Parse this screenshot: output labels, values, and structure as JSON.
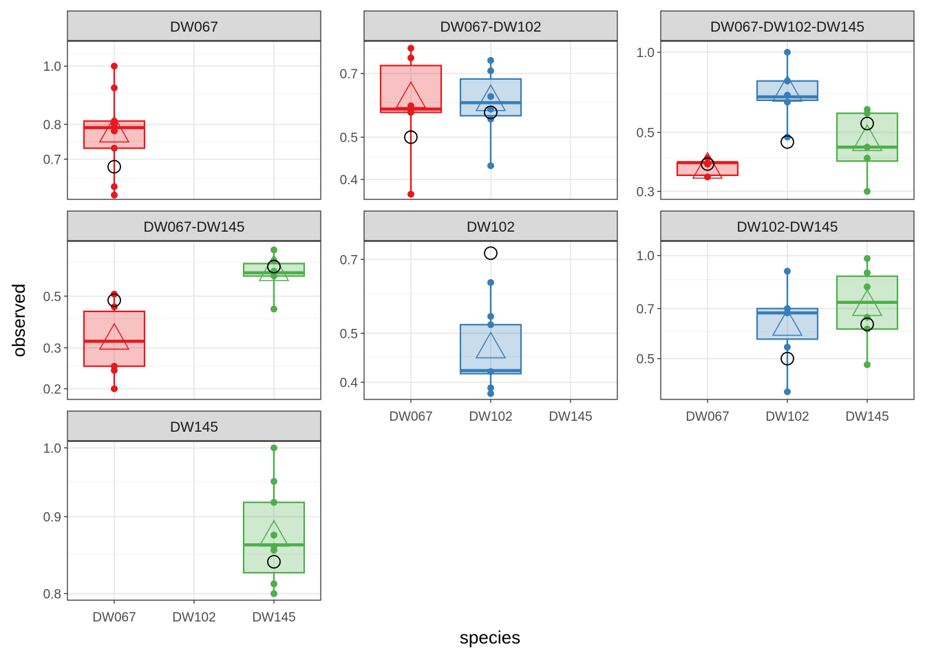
{
  "chart_data": {
    "type": "box",
    "xlabel": "species",
    "ylabel": "observed",
    "categories": [
      "DW067",
      "DW102",
      "DW145"
    ],
    "colors": {
      "DW067": "#e41a1c",
      "DW102": "#377eb8",
      "DW145": "#4daf4a"
    },
    "y_scale": "log",
    "grid": true,
    "legend": "none",
    "panels": [
      {
        "title": "DW067",
        "ylim": [
          0.6,
          1.1
        ],
        "yticks": [
          0.7,
          0.8,
          1.0
        ],
        "yticks_minor": [
          0.65,
          0.75,
          0.9,
          1.05
        ],
        "boxes": [
          {
            "species": "DW067",
            "q1": 0.73,
            "median": 0.79,
            "q3": 0.81,
            "whisker_low": 0.61,
            "whisker_high": 1.0,
            "mean": 0.78,
            "points": [
              1.0,
              0.92,
              0.81,
              0.8,
              0.78,
              0.73,
              0.63,
              0.61
            ],
            "reference": 0.68
          }
        ]
      },
      {
        "title": "DW067-DW102",
        "ylim": [
          0.36,
          0.83
        ],
        "yticks": [
          0.4,
          0.5,
          0.7
        ],
        "yticks_minor": [
          0.45,
          0.6,
          0.8
        ],
        "boxes": [
          {
            "species": "DW067",
            "q1": 0.57,
            "median": 0.58,
            "q3": 0.73,
            "whisker_low": 0.37,
            "whisker_high": 0.8,
            "mean": 0.62,
            "points": [
              0.8,
              0.76,
              0.59,
              0.57,
              0.37
            ],
            "reference": 0.5
          },
          {
            "species": "DW102",
            "q1": 0.56,
            "median": 0.6,
            "q3": 0.68,
            "whisker_low": 0.43,
            "whisker_high": 0.75,
            "mean": 0.61,
            "points": [
              0.75,
              0.71,
              0.62,
              0.58,
              0.55,
              0.43
            ],
            "reference": 0.57
          }
        ]
      },
      {
        "title": "DW067-DW102-DW145",
        "ylim": [
          0.28,
          1.1
        ],
        "yticks": [
          0.3,
          0.5,
          1.0
        ],
        "yticks_minor": [
          0.4,
          0.7
        ],
        "boxes": [
          {
            "species": "DW067",
            "q1": 0.345,
            "median": 0.385,
            "q3": 0.385,
            "whisker_low": 0.34,
            "whisker_high": 0.385,
            "mean": 0.37,
            "points": [
              0.4,
              0.38,
              0.34
            ],
            "reference": 0.38
          },
          {
            "species": "DW102",
            "q1": 0.66,
            "median": 0.68,
            "q3": 0.78,
            "whisker_low": 0.48,
            "whisker_high": 1.0,
            "mean": 0.72,
            "points": [
              1.0,
              0.78,
              0.69,
              0.65,
              0.48
            ],
            "reference": 0.46
          },
          {
            "species": "DW145",
            "q1": 0.39,
            "median": 0.44,
            "q3": 0.59,
            "whisker_low": 0.3,
            "whisker_high": 0.61,
            "mean": 0.47,
            "points": [
              0.61,
              0.59,
              0.44,
              0.4,
              0.3
            ],
            "reference": 0.54
          }
        ]
      },
      {
        "title": "DW067-DW145",
        "ylim": [
          0.18,
          0.86
        ],
        "yticks": [
          0.2,
          0.3,
          0.5
        ],
        "yticks_minor": [
          0.25,
          0.4,
          0.7
        ],
        "boxes": [
          {
            "species": "DW067",
            "q1": 0.25,
            "median": 0.32,
            "q3": 0.43,
            "whisker_low": 0.2,
            "whisker_high": 0.51,
            "mean": 0.33,
            "points": [
              0.51,
              0.45,
              0.25,
              0.24,
              0.2
            ],
            "reference": 0.48
          },
          {
            "species": "DW145",
            "q1": 0.61,
            "median": 0.63,
            "q3": 0.69,
            "whisker_low": 0.44,
            "whisker_high": 0.79,
            "mean": 0.65,
            "points": [
              0.79,
              0.71,
              0.64,
              0.61,
              0.44
            ],
            "reference": 0.67
          }
        ]
      },
      {
        "title": "DW102",
        "ylim": [
          0.37,
          0.76
        ],
        "yticks": [
          0.4,
          0.5,
          0.7
        ],
        "yticks_minor": [
          0.45,
          0.6
        ],
        "boxes": [
          {
            "species": "DW102",
            "q1": 0.416,
            "median": 0.422,
            "q3": 0.52,
            "whisker_low": 0.38,
            "whisker_high": 0.63,
            "mean": 0.47,
            "points": [
              0.63,
              0.54,
              0.52,
              0.42,
              0.39,
              0.38
            ],
            "reference": 0.72
          }
        ]
      },
      {
        "title": "DW102-DW145",
        "ylim": [
          0.38,
          1.1
        ],
        "yticks": [
          0.5,
          0.7,
          1.0
        ],
        "yticks_minor": [
          0.6,
          0.85
        ],
        "boxes": [
          {
            "species": "DW102",
            "q1": 0.57,
            "median": 0.68,
            "q3": 0.7,
            "whisker_low": 0.4,
            "whisker_high": 0.9,
            "mean": 0.63,
            "points": [
              0.9,
              0.7,
              0.68,
              0.54,
              0.4
            ],
            "reference": 0.5
          },
          {
            "species": "DW145",
            "q1": 0.61,
            "median": 0.73,
            "q3": 0.87,
            "whisker_low": 0.48,
            "whisker_high": 0.98,
            "mean": 0.72,
            "points": [
              0.98,
              0.89,
              0.81,
              0.66,
              0.61,
              0.48
            ],
            "reference": 0.63
          }
        ]
      },
      {
        "title": "DW145",
        "ylim": [
          0.792,
          1.01
        ],
        "yticks": [
          0.8,
          0.9,
          1.0
        ],
        "yticks_minor": [
          0.85,
          0.95
        ],
        "boxes": [
          {
            "species": "DW145",
            "q1": 0.826,
            "median": 0.862,
            "q3": 0.92,
            "whisker_low": 0.8,
            "whisker_high": 1.0,
            "mean": 0.875,
            "points": [
              1.0,
              0.95,
              0.92,
              0.875,
              0.86,
              0.855,
              0.812,
              0.8
            ],
            "reference": 0.84
          }
        ]
      }
    ]
  }
}
